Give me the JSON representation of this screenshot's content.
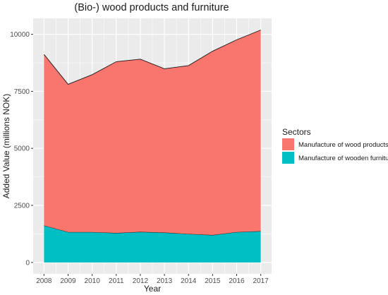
{
  "chart_data": {
    "type": "area",
    "stacked": true,
    "title": "(Bio-) wood products and furniture",
    "xlabel": "Year",
    "ylabel": "Added Value (millions NOK)",
    "x": [
      2008,
      2009,
      2010,
      2011,
      2012,
      2013,
      2014,
      2015,
      2016,
      2017
    ],
    "x_tick_labels": [
      "2008",
      "2009",
      "2010",
      "2011",
      "2012",
      "2013",
      "2014",
      "2015",
      "2016",
      "2017"
    ],
    "y_ticks": [
      0,
      2500,
      5000,
      7500,
      10000
    ],
    "y_tick_labels": [
      "0",
      "2500",
      "5000",
      "7500",
      "10000"
    ],
    "ylim": [
      -500,
      10700
    ],
    "grid": true,
    "legend_position": "right",
    "legend_title": "Sectors",
    "series": [
      {
        "name": "Manufacture of wooden furniture",
        "color": "#00BFC4",
        "values": [
          1620,
          1330,
          1330,
          1290,
          1340,
          1310,
          1250,
          1200,
          1330,
          1370
        ]
      },
      {
        "name": "Manufacture of wood products",
        "color": "#F8766D",
        "values": [
          7500,
          6480,
          6900,
          7510,
          7570,
          7180,
          7380,
          8060,
          8430,
          8820
        ]
      }
    ],
    "legend_order": [
      1,
      0
    ]
  }
}
